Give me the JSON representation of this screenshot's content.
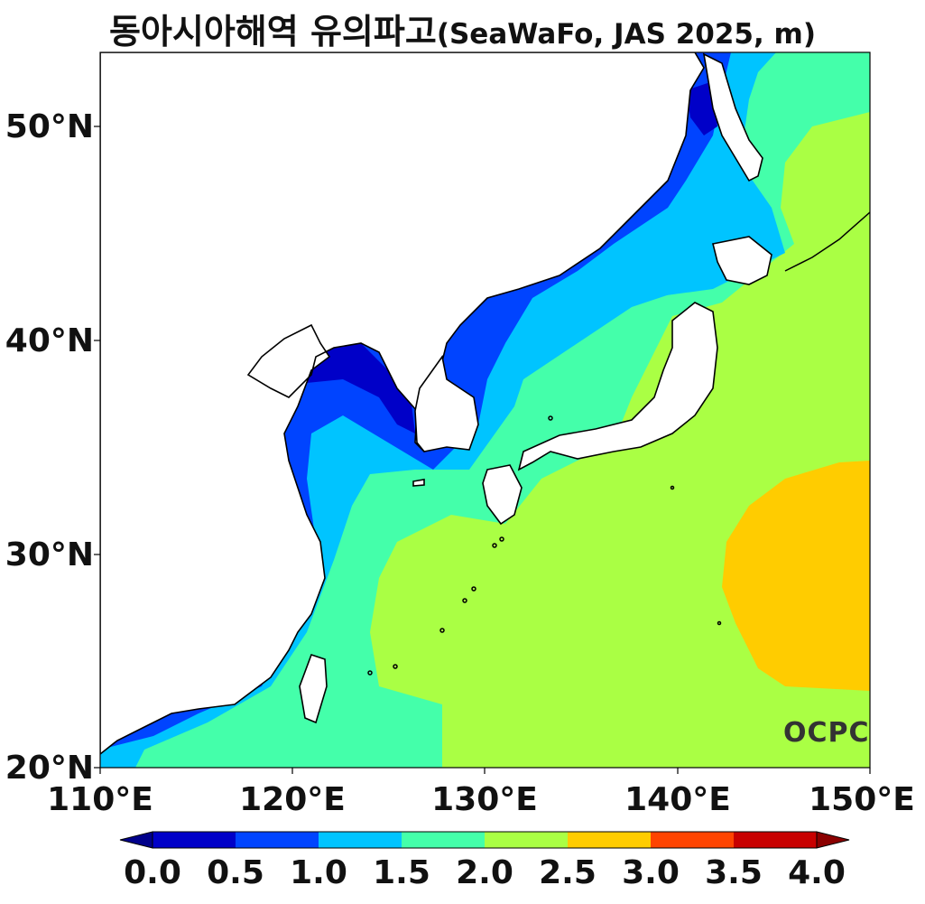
{
  "title": {
    "korean": "동아시아해역 유의파고",
    "suffix": "(SeaWaFo, JAS 2025, m)"
  },
  "map": {
    "region": "East Asia",
    "lon_range": [
      110,
      150
    ],
    "lat_range": [
      20,
      53.5
    ],
    "background_land": "#ffffff",
    "coastline_color": "#000000"
  },
  "axes": {
    "y_ticks": [
      "50°N",
      "40°N",
      "30°N",
      "20°N"
    ],
    "x_ticks": [
      "110°E",
      "120°E",
      "130°E",
      "140°E",
      "150°E"
    ]
  },
  "colorbar": {
    "labels": [
      "0.0",
      "0.5",
      "1.0",
      "1.5",
      "2.0",
      "2.5",
      "3.0",
      "3.5",
      "4.0"
    ],
    "colors": [
      "#0000c8",
      "#0044ff",
      "#00c4ff",
      "#44ffaa",
      "#aaff44",
      "#ffcc00",
      "#ff4400",
      "#c80000"
    ],
    "under_color": "#00008b",
    "over_color": "#8b0000"
  },
  "logo": {
    "text": "OCPC"
  }
}
